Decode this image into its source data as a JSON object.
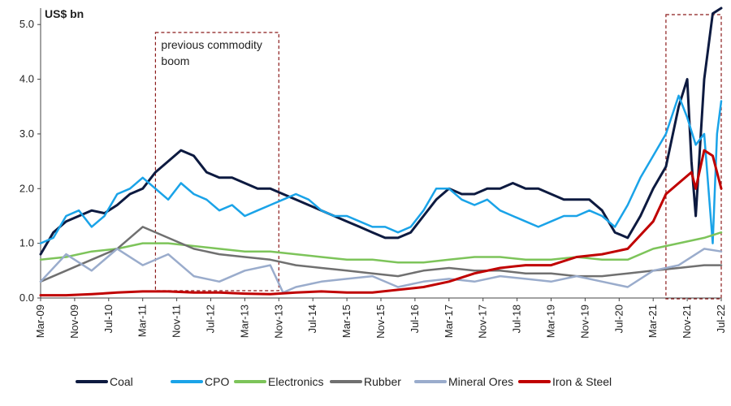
{
  "chart_data": {
    "type": "line",
    "ylabel": "US$ bn",
    "ylim": [
      0,
      5.3
    ],
    "yticks": [
      "0.0",
      "1.0",
      "2.0",
      "3.0",
      "4.0",
      "5.0"
    ],
    "xticks": [
      "Mar-09",
      "Nov-09",
      "Jul-10",
      "Mar-11",
      "Nov-11",
      "Jul-12",
      "Mar-13",
      "Nov-13",
      "Jul-14",
      "Mar-15",
      "Nov-15",
      "Jul-16",
      "Mar-17",
      "Nov-17",
      "Jul-18",
      "Mar-19",
      "Nov-19",
      "Jul-20",
      "Mar-21",
      "Nov-21",
      "Jul-22"
    ],
    "x_range": [
      "2009-03",
      "2022-07"
    ],
    "annotations": [
      {
        "text": "previous commodity boom",
        "lines": [
          "previous commodity",
          "boom"
        ],
        "from": "2011-06",
        "to": "2013-11",
        "style": "dashed-box"
      },
      {
        "text": "",
        "from": "2021-06",
        "to": "2022-07",
        "style": "dashed-box"
      }
    ],
    "legend_position": "bottom",
    "series": [
      {
        "name": "Coal",
        "color": "#0d1a40",
        "width": 3,
        "points": [
          [
            "2009-03",
            0.8
          ],
          [
            "2009-06",
            1.2
          ],
          [
            "2009-09",
            1.4
          ],
          [
            "2009-12",
            1.5
          ],
          [
            "2010-03",
            1.6
          ],
          [
            "2010-06",
            1.55
          ],
          [
            "2010-09",
            1.7
          ],
          [
            "2010-12",
            1.9
          ],
          [
            "2011-03",
            2.0
          ],
          [
            "2011-06",
            2.3
          ],
          [
            "2011-09",
            2.5
          ],
          [
            "2011-12",
            2.7
          ],
          [
            "2012-03",
            2.6
          ],
          [
            "2012-06",
            2.3
          ],
          [
            "2012-09",
            2.2
          ],
          [
            "2012-12",
            2.2
          ],
          [
            "2013-03",
            2.1
          ],
          [
            "2013-06",
            2.0
          ],
          [
            "2013-09",
            2.0
          ],
          [
            "2013-12",
            1.9
          ],
          [
            "2014-03",
            1.8
          ],
          [
            "2014-06",
            1.7
          ],
          [
            "2014-09",
            1.6
          ],
          [
            "2014-12",
            1.5
          ],
          [
            "2015-03",
            1.4
          ],
          [
            "2015-06",
            1.3
          ],
          [
            "2015-09",
            1.2
          ],
          [
            "2015-12",
            1.1
          ],
          [
            "2016-03",
            1.1
          ],
          [
            "2016-06",
            1.2
          ],
          [
            "2016-09",
            1.5
          ],
          [
            "2016-12",
            1.8
          ],
          [
            "2017-03",
            2.0
          ],
          [
            "2017-06",
            1.9
          ],
          [
            "2017-09",
            1.9
          ],
          [
            "2017-12",
            2.0
          ],
          [
            "2018-03",
            2.0
          ],
          [
            "2018-06",
            2.1
          ],
          [
            "2018-09",
            2.0
          ],
          [
            "2018-12",
            2.0
          ],
          [
            "2019-03",
            1.9
          ],
          [
            "2019-06",
            1.8
          ],
          [
            "2019-09",
            1.8
          ],
          [
            "2019-12",
            1.8
          ],
          [
            "2020-03",
            1.6
          ],
          [
            "2020-06",
            1.2
          ],
          [
            "2020-09",
            1.1
          ],
          [
            "2020-12",
            1.5
          ],
          [
            "2021-03",
            2.0
          ],
          [
            "2021-06",
            2.4
          ],
          [
            "2021-09",
            3.5
          ],
          [
            "2021-11",
            4.0
          ],
          [
            "2021-12",
            2.5
          ],
          [
            "2022-01",
            1.5
          ],
          [
            "2022-03",
            4.0
          ],
          [
            "2022-05",
            5.2
          ],
          [
            "2022-07",
            5.3
          ]
        ]
      },
      {
        "name": "CPO",
        "color": "#1aa3e8",
        "width": 2.5,
        "points": [
          [
            "2009-03",
            1.0
          ],
          [
            "2009-06",
            1.1
          ],
          [
            "2009-09",
            1.5
          ],
          [
            "2009-12",
            1.6
          ],
          [
            "2010-03",
            1.3
          ],
          [
            "2010-06",
            1.5
          ],
          [
            "2010-09",
            1.9
          ],
          [
            "2010-12",
            2.0
          ],
          [
            "2011-03",
            2.2
          ],
          [
            "2011-06",
            2.0
          ],
          [
            "2011-09",
            1.8
          ],
          [
            "2011-12",
            2.1
          ],
          [
            "2012-03",
            1.9
          ],
          [
            "2012-06",
            1.8
          ],
          [
            "2012-09",
            1.6
          ],
          [
            "2012-12",
            1.7
          ],
          [
            "2013-03",
            1.5
          ],
          [
            "2013-06",
            1.6
          ],
          [
            "2013-09",
            1.7
          ],
          [
            "2013-12",
            1.8
          ],
          [
            "2014-03",
            1.9
          ],
          [
            "2014-06",
            1.8
          ],
          [
            "2014-09",
            1.6
          ],
          [
            "2014-12",
            1.5
          ],
          [
            "2015-03",
            1.5
          ],
          [
            "2015-06",
            1.4
          ],
          [
            "2015-09",
            1.3
          ],
          [
            "2015-12",
            1.3
          ],
          [
            "2016-03",
            1.2
          ],
          [
            "2016-06",
            1.3
          ],
          [
            "2016-09",
            1.6
          ],
          [
            "2016-12",
            2.0
          ],
          [
            "2017-03",
            2.0
          ],
          [
            "2017-06",
            1.8
          ],
          [
            "2017-09",
            1.7
          ],
          [
            "2017-12",
            1.8
          ],
          [
            "2018-03",
            1.6
          ],
          [
            "2018-06",
            1.5
          ],
          [
            "2018-09",
            1.4
          ],
          [
            "2018-12",
            1.3
          ],
          [
            "2019-03",
            1.4
          ],
          [
            "2019-06",
            1.5
          ],
          [
            "2019-09",
            1.5
          ],
          [
            "2019-12",
            1.6
          ],
          [
            "2020-03",
            1.5
          ],
          [
            "2020-06",
            1.3
          ],
          [
            "2020-09",
            1.7
          ],
          [
            "2020-12",
            2.2
          ],
          [
            "2021-03",
            2.6
          ],
          [
            "2021-06",
            3.0
          ],
          [
            "2021-09",
            3.7
          ],
          [
            "2021-11",
            3.3
          ],
          [
            "2022-01",
            2.8
          ],
          [
            "2022-03",
            3.0
          ],
          [
            "2022-05",
            1.0
          ],
          [
            "2022-06",
            3.0
          ],
          [
            "2022-07",
            3.6
          ]
        ]
      },
      {
        "name": "Electronics",
        "color": "#7dc45a",
        "width": 2.5,
        "points": [
          [
            "2009-03",
            0.7
          ],
          [
            "2009-09",
            0.75
          ],
          [
            "2010-03",
            0.85
          ],
          [
            "2010-09",
            0.9
          ],
          [
            "2011-03",
            1.0
          ],
          [
            "2011-09",
            1.0
          ],
          [
            "2012-03",
            0.95
          ],
          [
            "2012-09",
            0.9
          ],
          [
            "2013-03",
            0.85
          ],
          [
            "2013-09",
            0.85
          ],
          [
            "2014-03",
            0.8
          ],
          [
            "2014-09",
            0.75
          ],
          [
            "2015-03",
            0.7
          ],
          [
            "2015-09",
            0.7
          ],
          [
            "2016-03",
            0.65
          ],
          [
            "2016-09",
            0.65
          ],
          [
            "2017-03",
            0.7
          ],
          [
            "2017-09",
            0.75
          ],
          [
            "2018-03",
            0.75
          ],
          [
            "2018-09",
            0.7
          ],
          [
            "2019-03",
            0.7
          ],
          [
            "2019-09",
            0.75
          ],
          [
            "2020-03",
            0.7
          ],
          [
            "2020-09",
            0.7
          ],
          [
            "2021-03",
            0.9
          ],
          [
            "2021-09",
            1.0
          ],
          [
            "2022-03",
            1.1
          ],
          [
            "2022-07",
            1.2
          ]
        ]
      },
      {
        "name": "Rubber",
        "color": "#707070",
        "width": 2.5,
        "points": [
          [
            "2009-03",
            0.3
          ],
          [
            "2009-09",
            0.5
          ],
          [
            "2010-03",
            0.7
          ],
          [
            "2010-09",
            0.9
          ],
          [
            "2011-03",
            1.3
          ],
          [
            "2011-09",
            1.1
          ],
          [
            "2012-03",
            0.9
          ],
          [
            "2012-09",
            0.8
          ],
          [
            "2013-03",
            0.75
          ],
          [
            "2013-09",
            0.7
          ],
          [
            "2014-03",
            0.6
          ],
          [
            "2014-09",
            0.55
          ],
          [
            "2015-03",
            0.5
          ],
          [
            "2015-09",
            0.45
          ],
          [
            "2016-03",
            0.4
          ],
          [
            "2016-09",
            0.5
          ],
          [
            "2017-03",
            0.55
          ],
          [
            "2017-09",
            0.5
          ],
          [
            "2018-03",
            0.5
          ],
          [
            "2018-09",
            0.45
          ],
          [
            "2019-03",
            0.45
          ],
          [
            "2019-09",
            0.4
          ],
          [
            "2020-03",
            0.4
          ],
          [
            "2020-09",
            0.45
          ],
          [
            "2021-03",
            0.5
          ],
          [
            "2021-09",
            0.55
          ],
          [
            "2022-03",
            0.6
          ],
          [
            "2022-07",
            0.6
          ]
        ]
      },
      {
        "name": "Mineral Ores",
        "color": "#9aaccc",
        "width": 2.5,
        "points": [
          [
            "2009-03",
            0.3
          ],
          [
            "2009-09",
            0.8
          ],
          [
            "2010-03",
            0.5
          ],
          [
            "2010-09",
            0.9
          ],
          [
            "2011-03",
            0.6
          ],
          [
            "2011-09",
            0.8
          ],
          [
            "2012-03",
            0.4
          ],
          [
            "2012-09",
            0.3
          ],
          [
            "2013-03",
            0.5
          ],
          [
            "2013-09",
            0.6
          ],
          [
            "2013-12",
            0.1
          ],
          [
            "2014-03",
            0.2
          ],
          [
            "2014-09",
            0.3
          ],
          [
            "2015-03",
            0.35
          ],
          [
            "2015-09",
            0.4
          ],
          [
            "2016-03",
            0.2
          ],
          [
            "2016-09",
            0.3
          ],
          [
            "2017-03",
            0.35
          ],
          [
            "2017-09",
            0.3
          ],
          [
            "2018-03",
            0.4
          ],
          [
            "2018-09",
            0.35
          ],
          [
            "2019-03",
            0.3
          ],
          [
            "2019-09",
            0.4
          ],
          [
            "2020-03",
            0.3
          ],
          [
            "2020-09",
            0.2
          ],
          [
            "2021-03",
            0.5
          ],
          [
            "2021-09",
            0.6
          ],
          [
            "2022-03",
            0.9
          ],
          [
            "2022-07",
            0.85
          ]
        ]
      },
      {
        "name": "Iron & Steel",
        "color": "#c00000",
        "width": 3,
        "points": [
          [
            "2009-03",
            0.05
          ],
          [
            "2009-09",
            0.05
          ],
          [
            "2010-03",
            0.07
          ],
          [
            "2010-09",
            0.1
          ],
          [
            "2011-03",
            0.12
          ],
          [
            "2011-09",
            0.12
          ],
          [
            "2012-03",
            0.1
          ],
          [
            "2012-09",
            0.1
          ],
          [
            "2013-03",
            0.08
          ],
          [
            "2013-09",
            0.07
          ],
          [
            "2014-03",
            0.1
          ],
          [
            "2014-09",
            0.12
          ],
          [
            "2015-03",
            0.1
          ],
          [
            "2015-09",
            0.1
          ],
          [
            "2016-03",
            0.15
          ],
          [
            "2016-09",
            0.2
          ],
          [
            "2017-03",
            0.3
          ],
          [
            "2017-09",
            0.45
          ],
          [
            "2018-03",
            0.55
          ],
          [
            "2018-09",
            0.6
          ],
          [
            "2019-03",
            0.6
          ],
          [
            "2019-09",
            0.75
          ],
          [
            "2020-03",
            0.8
          ],
          [
            "2020-09",
            0.9
          ],
          [
            "2021-03",
            1.4
          ],
          [
            "2021-06",
            1.9
          ],
          [
            "2021-09",
            2.1
          ],
          [
            "2021-12",
            2.3
          ],
          [
            "2022-01",
            2.0
          ],
          [
            "2022-03",
            2.7
          ],
          [
            "2022-05",
            2.6
          ],
          [
            "2022-07",
            2.0
          ]
        ]
      }
    ]
  }
}
